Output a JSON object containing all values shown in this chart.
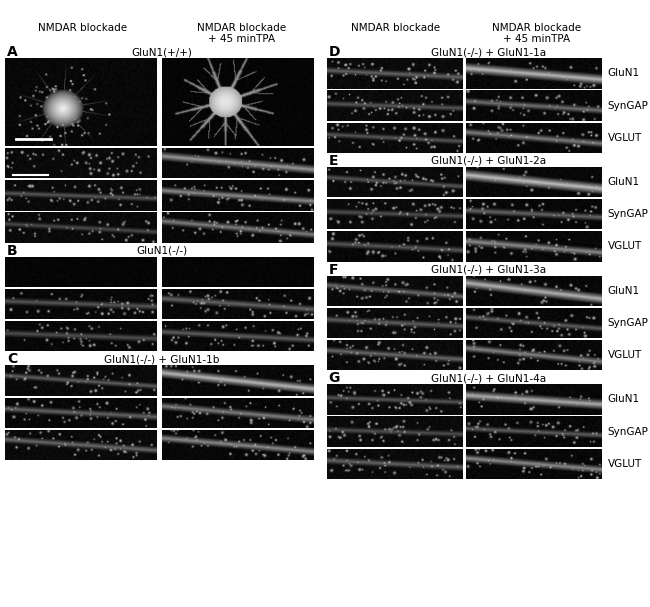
{
  "bg_color": "#ffffff",
  "panel_bg": "#000000",
  "top_labels_left": [
    "NMDAR blockade",
    "NMDAR blockade\n+ 45 minTPA"
  ],
  "top_labels_right": [
    "NMDAR blockade",
    "NMDAR blockade\n+ 45 minTPA"
  ],
  "section_labels": {
    "A": "GluN1(+/+)",
    "B": "GluN1(-/-)",
    "C": "GluN1(-/-) + GluN1-1b",
    "D": "GluN1(-/-) + GluN1-1a",
    "E": "GluN1(-/-) + GluN1-2a",
    "F": "GluN1(-/-) + GluN1-3a",
    "G": "GluN1(-/-) + GluN1-4a"
  },
  "right_labels": [
    "GluN1",
    "SynGAP",
    "VGLUT"
  ],
  "font_size_header": 7.5,
  "font_size_label": 7.5,
  "font_size_letter": 10
}
